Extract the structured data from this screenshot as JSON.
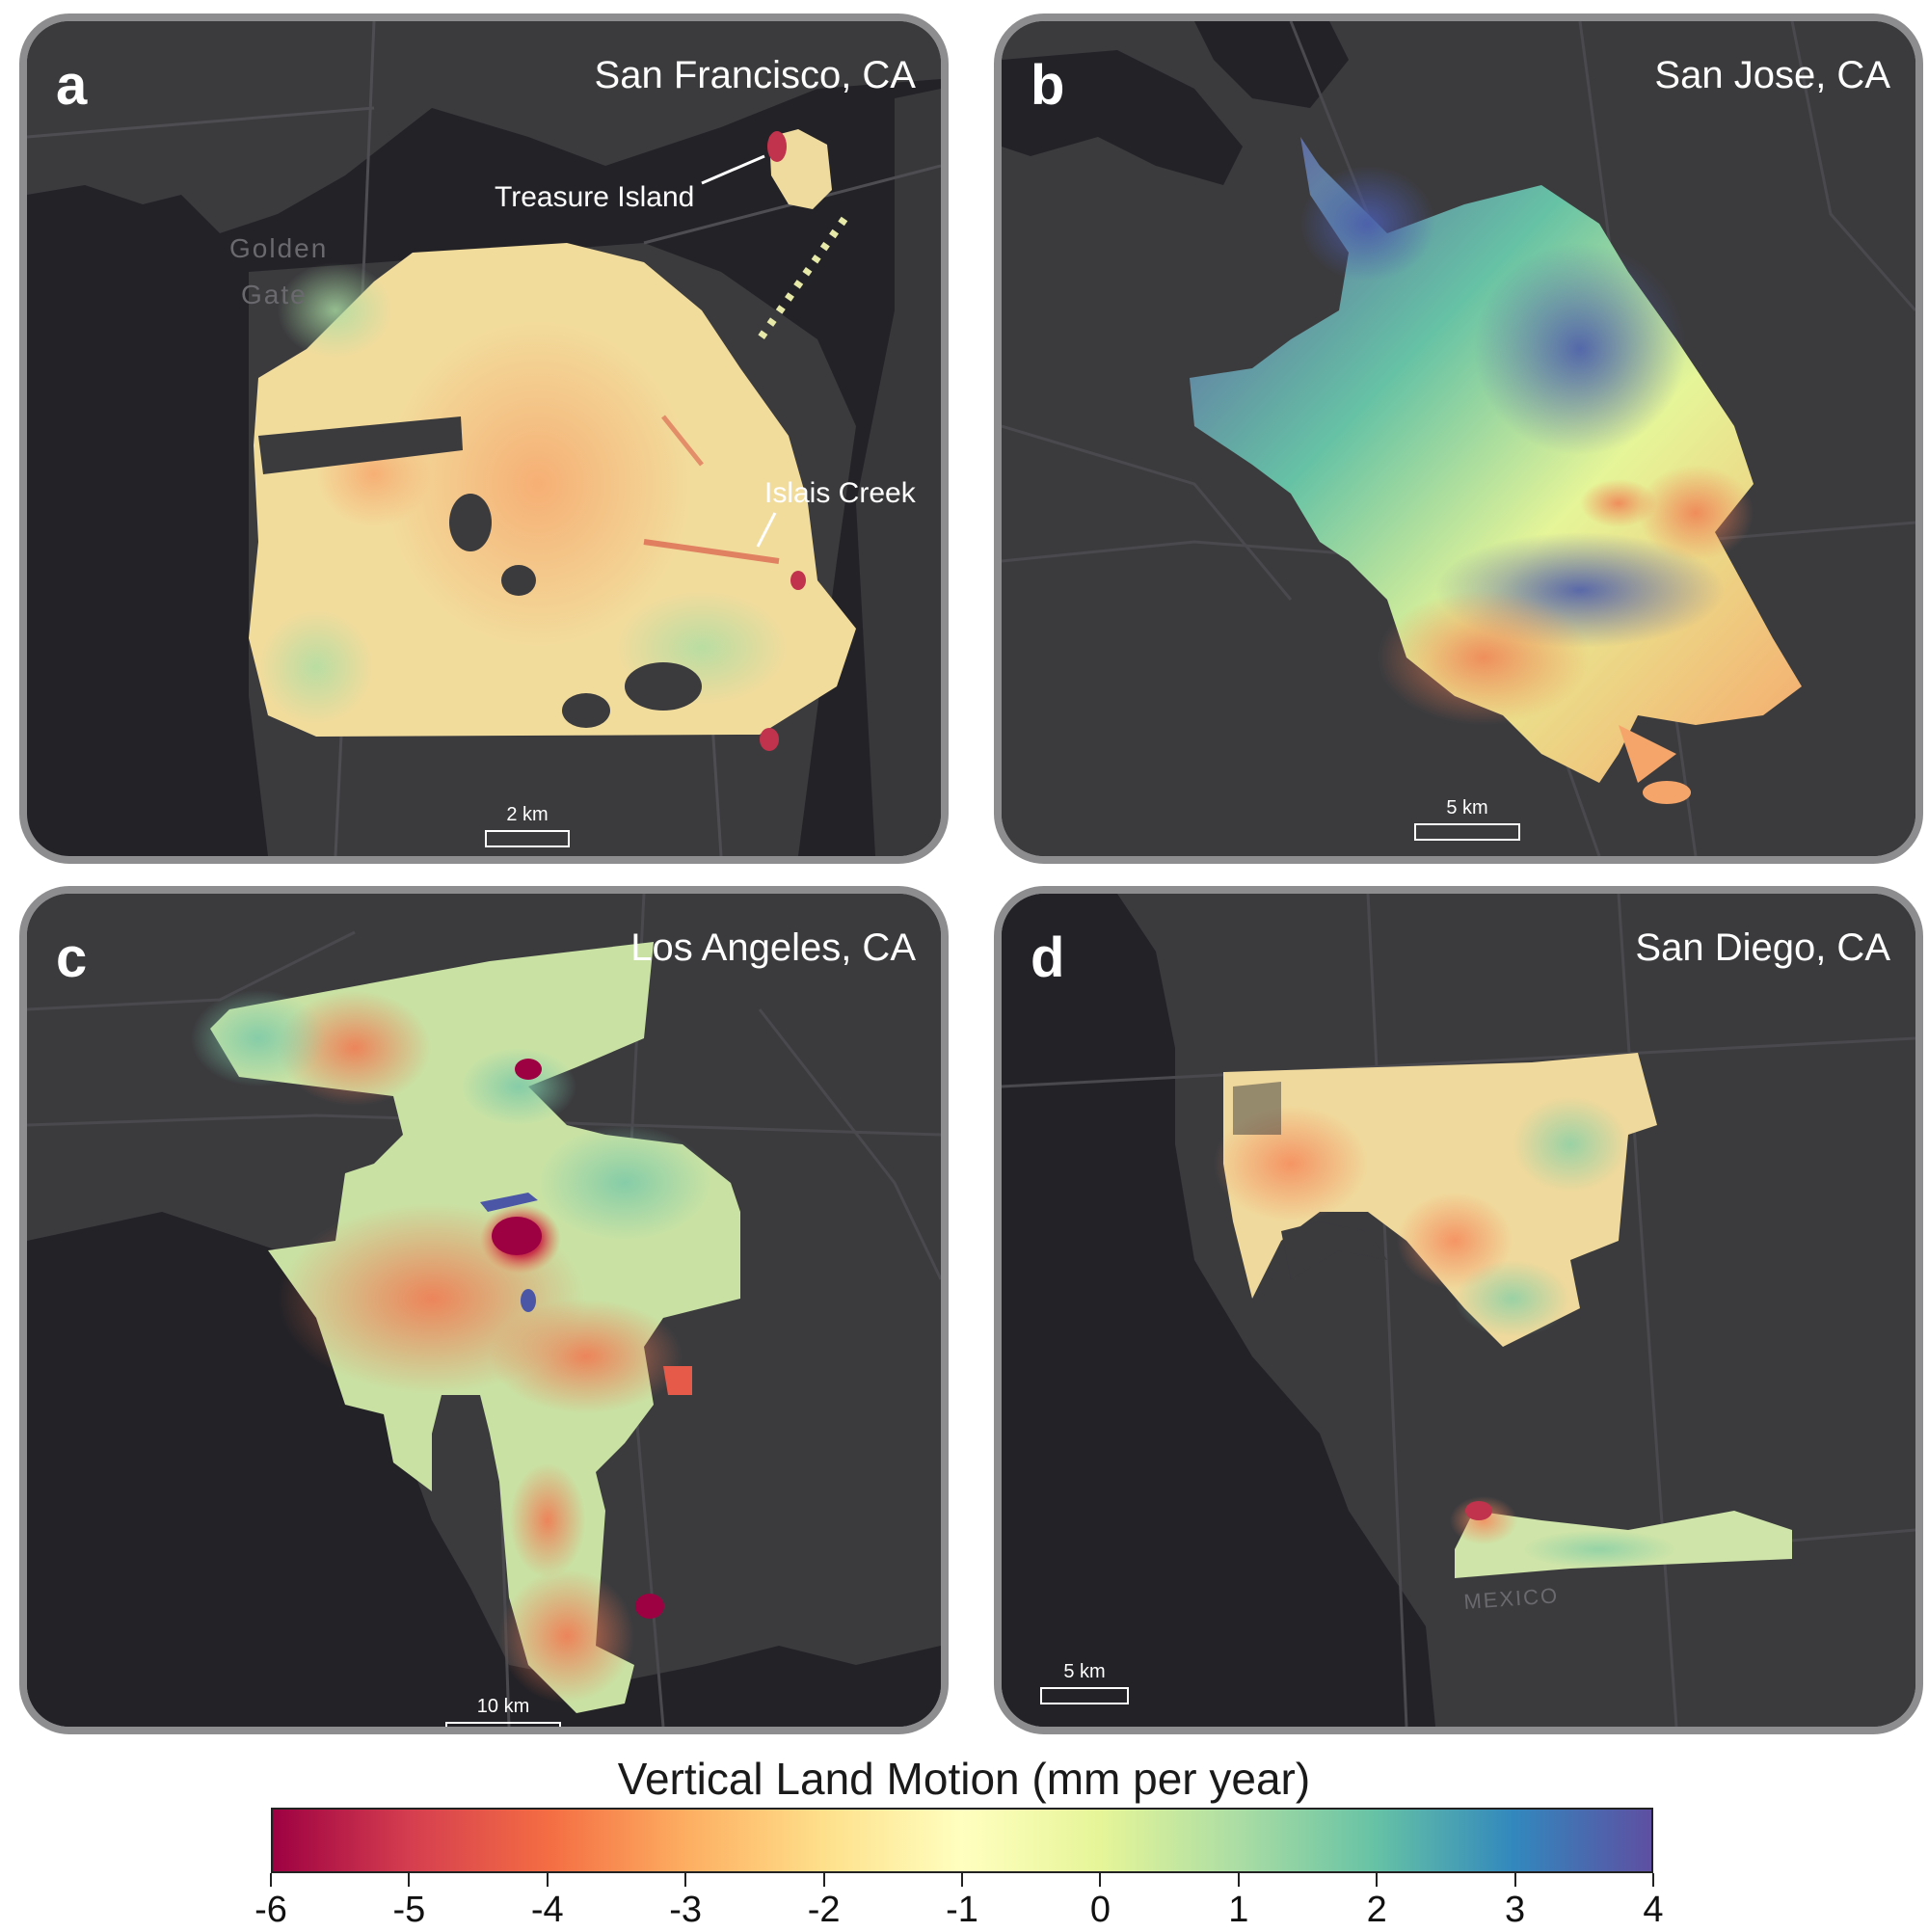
{
  "colors": {
    "water": "#232227",
    "land": "#3b3b3e",
    "road": "#4e4e52",
    "frame": "#8d8d8f",
    "label": "#ffffff",
    "geo_label": "#6a6a6e"
  },
  "panels": [
    {
      "letter": "a",
      "city": "San Francisco, CA",
      "scale_label": "2 km",
      "annotations": [
        "Treasure Island",
        "Islais Creek"
      ],
      "geo_labels": [
        "Golden",
        "Gate"
      ]
    },
    {
      "letter": "b",
      "city": "San Jose, CA",
      "scale_label": "5 km",
      "annotations": [],
      "geo_labels": []
    },
    {
      "letter": "c",
      "city": "Los Angeles, CA",
      "scale_label": "10 km",
      "annotations": [],
      "geo_labels": []
    },
    {
      "letter": "d",
      "city": "San Diego, CA",
      "scale_label": "5 km",
      "annotations": [],
      "geo_labels": [
        "MEXICO"
      ]
    }
  ],
  "legend": {
    "title": "Vertical Land Motion (mm per year)",
    "min": -6,
    "max": 4,
    "ticks": [
      "-6",
      "-5",
      "-4",
      "-3",
      "-2",
      "-1",
      "0",
      "1",
      "2",
      "3",
      "4"
    ],
    "colormap_stops": [
      "#9e0142",
      "#d53e4f",
      "#f46d43",
      "#fdae61",
      "#fee08b",
      "#ffffbf",
      "#e6f598",
      "#abdda4",
      "#66c2a5",
      "#3288bd",
      "#5e4fa2"
    ]
  }
}
